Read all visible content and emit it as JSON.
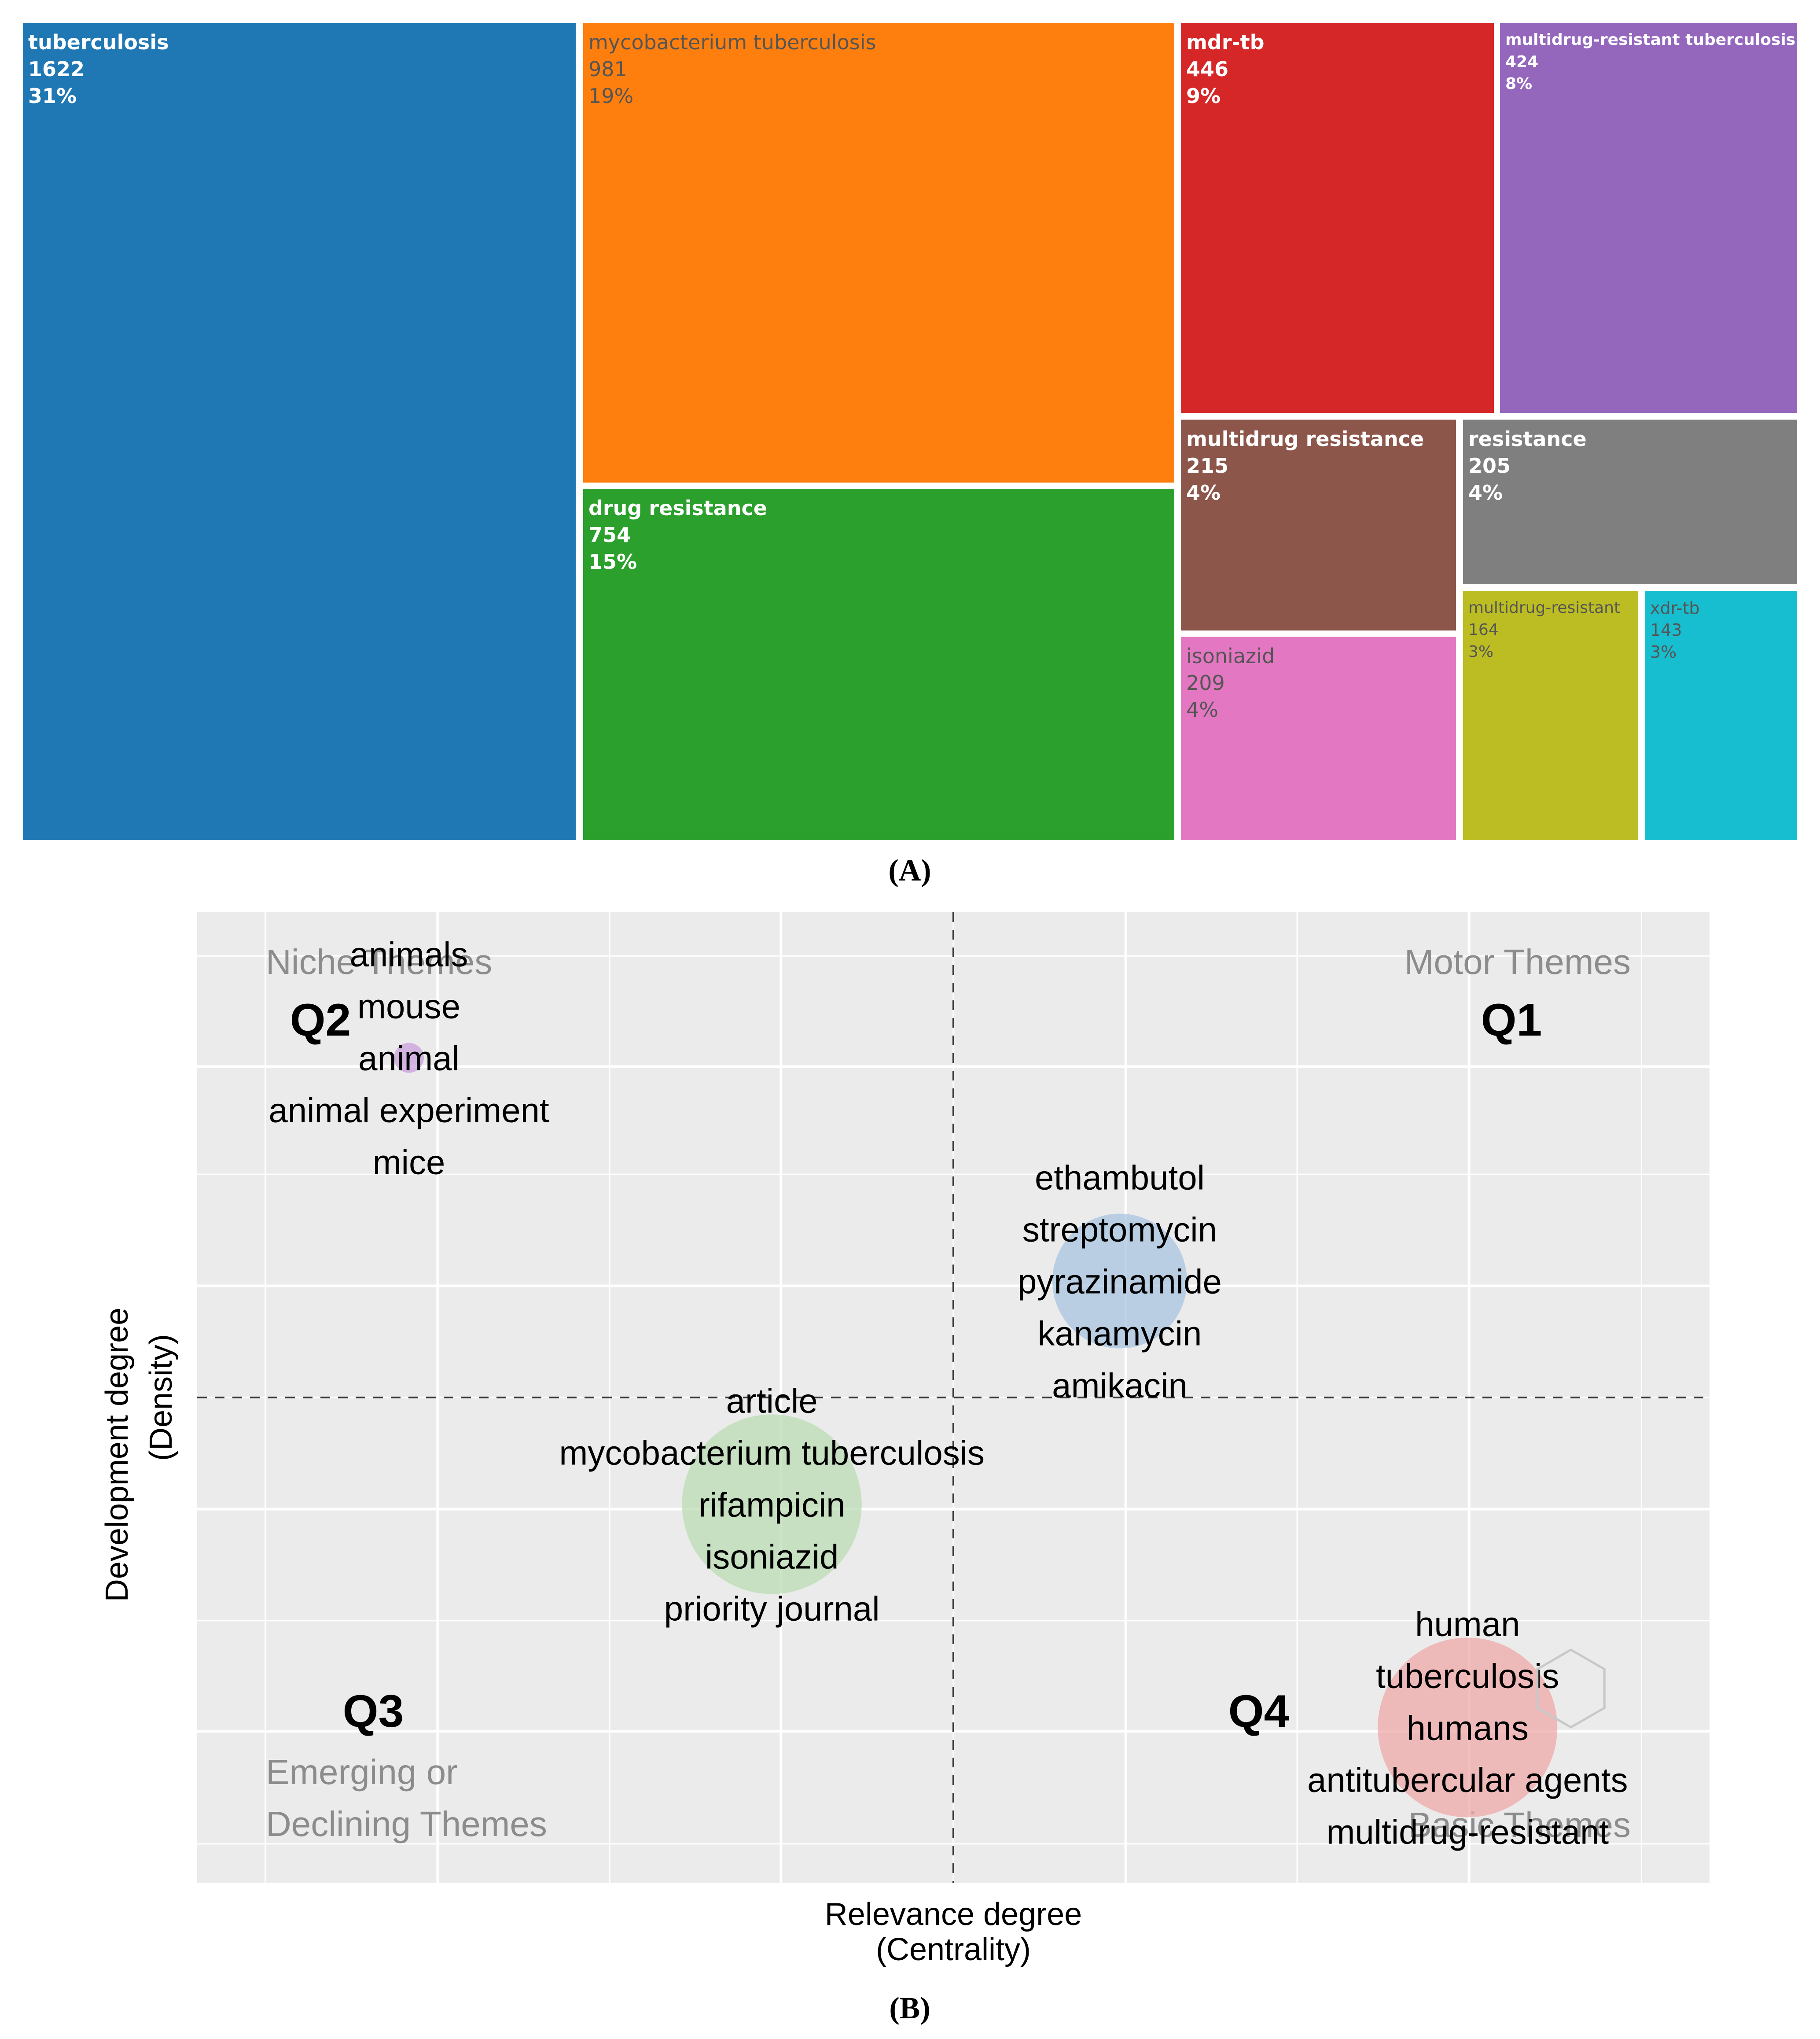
{
  "chart_data": [
    {
      "type": "treemap",
      "panel_label": "(A)",
      "items": [
        {
          "name": "tuberculosis",
          "value": "1622",
          "percent": "31%",
          "color": "#1f77b4"
        },
        {
          "name": "mycobacterium tuberculosis",
          "value": "981",
          "percent": "19%",
          "color": "#ff7f0e"
        },
        {
          "name": "drug resistance",
          "value": "754",
          "percent": "15%",
          "color": "#2ca02c"
        },
        {
          "name": "mdr-tb",
          "value": "446",
          "percent": "9%",
          "color": "#d62728"
        },
        {
          "name": "multidrug-resistant tuberculosis",
          "value": "424",
          "percent": "8%",
          "color": "#9467bd"
        },
        {
          "name": "multidrug resistance",
          "value": "215",
          "percent": "4%",
          "color": "#8c564b"
        },
        {
          "name": "resistance",
          "value": "205",
          "percent": "4%",
          "color": "#7f7f7f"
        },
        {
          "name": "isoniazid",
          "value": "209",
          "percent": "4%",
          "color": "#e377c2"
        },
        {
          "name": "multidrug-resistant",
          "value": "164",
          "percent": "3%",
          "color": "#bcbd22"
        },
        {
          "name": "xdr-tb",
          "value": "143",
          "percent": "3%",
          "color": "#17becf"
        }
      ]
    },
    {
      "type": "bubble",
      "panel_label": "(B)",
      "xlabel": "Relevance degree",
      "xlabel2": "(Centrality)",
      "ylabel": "Development degree",
      "ylabel2": "(Density)",
      "x_range": [
        0,
        100
      ],
      "y_range": [
        0,
        100
      ],
      "x_divider": 50,
      "y_divider": 50,
      "quadrants": [
        {
          "id": "Q1",
          "title": "Motor Themes",
          "title2": ""
        },
        {
          "id": "Q2",
          "title": "Niche Themes",
          "title2": ""
        },
        {
          "id": "Q3",
          "title": "Emerging or",
          "title2": "Declining Themes"
        },
        {
          "id": "Q4",
          "title": "Basic Themes",
          "title2": ""
        }
      ],
      "clusters": [
        {
          "name": "cluster-animals",
          "x": 14,
          "y": 85,
          "size": 2,
          "color": "#c9a0dc",
          "keywords": [
            "animals",
            "mouse",
            "animal",
            "animal experiment",
            "mice"
          ]
        },
        {
          "name": "cluster-drugs",
          "x": 61,
          "y": 62,
          "size": 9,
          "color": "#a9c4e0",
          "keywords": [
            "ethambutol",
            "streptomycin",
            "pyrazinamide",
            "kanamycin",
            "amikacin"
          ]
        },
        {
          "name": "cluster-article",
          "x": 38,
          "y": 39,
          "size": 12,
          "color": "#b9dcb3",
          "keywords": [
            "article",
            "mycobacterium tuberculosis",
            "rifampicin",
            "isoniazid",
            "priority journal"
          ]
        },
        {
          "name": "cluster-human",
          "x": 84,
          "y": 16,
          "size": 12,
          "color": "#efa9a8",
          "keywords": [
            "human",
            "tuberculosis",
            "humans",
            "antitubercular agents",
            "multidrug-resistant"
          ]
        }
      ]
    }
  ]
}
